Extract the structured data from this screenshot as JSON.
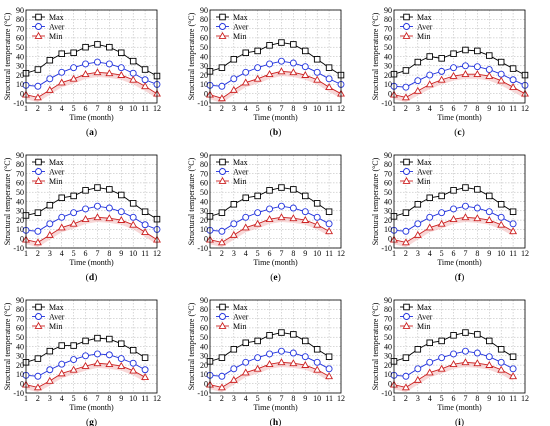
{
  "figure": {
    "xlabel": "Time (month)",
    "ylabel": "Structural temperature (°C)",
    "legend": [
      "Max",
      "Aver",
      "Min"
    ]
  },
  "series_colors": {
    "Max": "#000000",
    "Aver": "#2233dd",
    "Min": "#cc2222",
    "band": "#f2b8b8"
  },
  "chart_data": [
    {
      "panel": "a",
      "type": "line",
      "x": [
        1,
        2,
        3,
        4,
        5,
        6,
        7,
        8,
        9,
        10,
        11,
        12
      ],
      "x_ticks": [
        "1",
        "2",
        "3",
        "4",
        "5",
        "6",
        "7",
        "8",
        "9",
        "10",
        "11",
        "12"
      ],
      "y_ticks": [
        "-10",
        "0",
        "10",
        "20",
        "30",
        "40",
        "50",
        "60",
        "70",
        "80",
        "90"
      ],
      "ylim": [
        -10,
        90
      ],
      "xlim": [
        1,
        12
      ],
      "grid": true,
      "legend_position": "top-left",
      "xlabel": "Time (month)",
      "ylabel": "Structural temperature (°C)",
      "series": [
        {
          "name": "Max",
          "values": [
            22,
            26,
            36,
            43,
            44,
            50,
            53,
            50,
            44,
            35,
            26,
            19
          ]
        },
        {
          "name": "Aver",
          "values": [
            9,
            8,
            16,
            23,
            28,
            32,
            34,
            32,
            28,
            22,
            15,
            10
          ]
        },
        {
          "name": "Min",
          "values": [
            -1,
            -4,
            4,
            12,
            16,
            21,
            23,
            22,
            20,
            15,
            8,
            0
          ]
        }
      ]
    },
    {
      "panel": "b",
      "type": "line",
      "x": [
        1,
        2,
        3,
        4,
        5,
        6,
        7,
        8,
        9,
        10,
        11,
        12
      ],
      "x_ticks": [
        "1",
        "2",
        "3",
        "4",
        "5",
        "6",
        "7",
        "8",
        "9",
        "10",
        "11",
        "12"
      ],
      "y_ticks": [
        "-10",
        "0",
        "10",
        "20",
        "30",
        "40",
        "50",
        "60",
        "70",
        "80",
        "90"
      ],
      "ylim": [
        -10,
        90
      ],
      "xlim": [
        1,
        12
      ],
      "grid": true,
      "legend_position": "top-left",
      "xlabel": "Time (month)",
      "ylabel": "Structural temperature (°C)",
      "series": [
        {
          "name": "Max",
          "values": [
            24,
            28,
            37,
            44,
            46,
            52,
            55,
            53,
            46,
            37,
            28,
            20
          ]
        },
        {
          "name": "Aver",
          "values": [
            9,
            8,
            16,
            23,
            28,
            32,
            35,
            33,
            29,
            23,
            16,
            10
          ]
        },
        {
          "name": "Min",
          "values": [
            -1,
            -5,
            4,
            12,
            16,
            21,
            24,
            23,
            20,
            15,
            7,
            0
          ]
        }
      ]
    },
    {
      "panel": "c",
      "type": "line",
      "x": [
        1,
        2,
        3,
        4,
        5,
        6,
        7,
        8,
        9,
        10,
        11,
        12
      ],
      "x_ticks": [
        "1",
        "2",
        "3",
        "4",
        "5",
        "6",
        "7",
        "8",
        "9",
        "10",
        "11",
        "12"
      ],
      "y_ticks": [
        "-10",
        "0",
        "10",
        "20",
        "30",
        "40",
        "50",
        "60",
        "70",
        "80",
        "90"
      ],
      "ylim": [
        -10,
        90
      ],
      "xlim": [
        1,
        12
      ],
      "grid": true,
      "legend_position": "top-left",
      "xlabel": "Time (month)",
      "ylabel": "Structural temperature (°C)",
      "series": [
        {
          "name": "Max",
          "values": [
            21,
            25,
            34,
            40,
            38,
            43,
            47,
            46,
            41,
            34,
            27,
            20
          ]
        },
        {
          "name": "Aver",
          "values": [
            8,
            7,
            14,
            20,
            24,
            28,
            30,
            29,
            26,
            21,
            15,
            9
          ]
        },
        {
          "name": "Min",
          "values": [
            -1,
            -4,
            3,
            10,
            15,
            19,
            21,
            21,
            19,
            14,
            7,
            0
          ]
        }
      ]
    },
    {
      "panel": "d",
      "type": "line",
      "x": [
        1,
        2,
        3,
        4,
        5,
        6,
        7,
        8,
        9,
        10,
        11,
        12
      ],
      "x_ticks": [
        "1",
        "2",
        "3",
        "4",
        "5",
        "6",
        "7",
        "8",
        "9",
        "10",
        "11",
        "12"
      ],
      "y_ticks": [
        "-10",
        "0",
        "10",
        "20",
        "30",
        "40",
        "50",
        "60",
        "70",
        "80",
        "90"
      ],
      "ylim": [
        -10,
        90
      ],
      "xlim": [
        1,
        12
      ],
      "grid": true,
      "legend_position": "top-left",
      "xlabel": "Time (month)",
      "ylabel": "Structural temperature (°C)",
      "series": [
        {
          "name": "Max",
          "values": [
            25,
            28,
            36,
            44,
            46,
            52,
            55,
            53,
            47,
            38,
            29,
            21
          ]
        },
        {
          "name": "Aver",
          "values": [
            9,
            8,
            16,
            23,
            28,
            32,
            35,
            33,
            29,
            23,
            15,
            10
          ]
        },
        {
          "name": "Min",
          "values": [
            -1,
            -4,
            4,
            12,
            16,
            21,
            23,
            22,
            20,
            15,
            7,
            -1
          ]
        }
      ]
    },
    {
      "panel": "e",
      "type": "line",
      "x": [
        1,
        2,
        3,
        4,
        5,
        6,
        7,
        8,
        9,
        10,
        11,
        12
      ],
      "x_ticks": [
        "1",
        "2",
        "3",
        "4",
        "5",
        "6",
        "7",
        "8",
        "9",
        "10",
        "11",
        "12"
      ],
      "y_ticks": [
        "-10",
        "0",
        "10",
        "20",
        "30",
        "40",
        "50",
        "60",
        "70",
        "80",
        "90"
      ],
      "ylim": [
        -10,
        90
      ],
      "xlim": [
        1,
        12
      ],
      "grid": true,
      "legend_position": "top-left",
      "xlabel": "Time (month)",
      "ylabel": "Structural temperature (°C)",
      "series": [
        {
          "name": "Max",
          "values": [
            24,
            28,
            37,
            44,
            46,
            52,
            55,
            53,
            46,
            38,
            29,
            null
          ]
        },
        {
          "name": "Aver",
          "values": [
            9,
            8,
            16,
            23,
            28,
            32,
            35,
            33,
            29,
            23,
            16,
            null
          ]
        },
        {
          "name": "Min",
          "values": [
            -1,
            -4,
            4,
            12,
            16,
            21,
            23,
            22,
            20,
            15,
            8,
            null
          ]
        }
      ]
    },
    {
      "panel": "f",
      "type": "line",
      "x": [
        1,
        2,
        3,
        4,
        5,
        6,
        7,
        8,
        9,
        10,
        11,
        12
      ],
      "x_ticks": [
        "1",
        "2",
        "3",
        "4",
        "5",
        "6",
        "7",
        "8",
        "9",
        "10",
        "11",
        "12"
      ],
      "y_ticks": [
        "-10",
        "0",
        "10",
        "20",
        "30",
        "40",
        "50",
        "60",
        "70",
        "80",
        "90"
      ],
      "ylim": [
        -10,
        90
      ],
      "xlim": [
        1,
        12
      ],
      "grid": true,
      "legend_position": "top-left",
      "xlabel": "Time (month)",
      "ylabel": "Structural temperature (°C)",
      "series": [
        {
          "name": "Max",
          "values": [
            24,
            28,
            37,
            44,
            46,
            52,
            55,
            53,
            46,
            37,
            29,
            null
          ]
        },
        {
          "name": "Aver",
          "values": [
            9,
            8,
            16,
            23,
            28,
            32,
            35,
            33,
            29,
            23,
            16,
            null
          ]
        },
        {
          "name": "Min",
          "values": [
            -1,
            -4,
            4,
            12,
            16,
            21,
            23,
            22,
            20,
            15,
            8,
            null
          ]
        }
      ]
    },
    {
      "panel": "g",
      "type": "line",
      "x": [
        1,
        2,
        3,
        4,
        5,
        6,
        7,
        8,
        9,
        10,
        11,
        12
      ],
      "x_ticks": [
        "1",
        "2",
        "3",
        "4",
        "5",
        "6",
        "7",
        "8",
        "9",
        "10",
        "11",
        "12"
      ],
      "y_ticks": [
        "-10",
        "0",
        "10",
        "20",
        "30",
        "40",
        "50",
        "60",
        "70",
        "80",
        "90"
      ],
      "ylim": [
        -10,
        90
      ],
      "xlim": [
        1,
        12
      ],
      "grid": true,
      "legend_position": "top-left",
      "xlabel": "Time (month)",
      "ylabel": "Structural temperature (°C)",
      "series": [
        {
          "name": "Max",
          "values": [
            23,
            27,
            35,
            41,
            41,
            46,
            49,
            48,
            43,
            36,
            28,
            null
          ]
        },
        {
          "name": "Aver",
          "values": [
            9,
            8,
            15,
            21,
            26,
            30,
            32,
            31,
            27,
            22,
            15,
            null
          ]
        },
        {
          "name": "Min",
          "values": [
            -1,
            -4,
            3,
            11,
            15,
            19,
            22,
            21,
            19,
            14,
            7,
            null
          ]
        }
      ]
    },
    {
      "panel": "h",
      "type": "line",
      "x": [
        1,
        2,
        3,
        4,
        5,
        6,
        7,
        8,
        9,
        10,
        11,
        12
      ],
      "x_ticks": [
        "1",
        "2",
        "3",
        "4",
        "5",
        "6",
        "7",
        "8",
        "9",
        "10",
        "11",
        "12"
      ],
      "y_ticks": [
        "-10",
        "0",
        "10",
        "20",
        "30",
        "40",
        "50",
        "60",
        "70",
        "80",
        "90"
      ],
      "ylim": [
        -10,
        90
      ],
      "xlim": [
        1,
        12
      ],
      "grid": true,
      "legend_position": "top-left",
      "xlabel": "Time (month)",
      "ylabel": "Structural temperature (°C)",
      "series": [
        {
          "name": "Max",
          "values": [
            24,
            28,
            37,
            44,
            46,
            52,
            55,
            53,
            46,
            37,
            29,
            null
          ]
        },
        {
          "name": "Aver",
          "values": [
            9,
            8,
            16,
            23,
            28,
            32,
            35,
            33,
            29,
            23,
            16,
            null
          ]
        },
        {
          "name": "Min",
          "values": [
            -1,
            -4,
            4,
            12,
            16,
            21,
            23,
            22,
            20,
            15,
            8,
            null
          ]
        }
      ]
    },
    {
      "panel": "i",
      "type": "line",
      "x": [
        1,
        2,
        3,
        4,
        5,
        6,
        7,
        8,
        9,
        10,
        11,
        12
      ],
      "x_ticks": [
        "1",
        "2",
        "3",
        "4",
        "5",
        "6",
        "7",
        "8",
        "9",
        "10",
        "11",
        "12"
      ],
      "y_ticks": [
        "-10",
        "0",
        "10",
        "20",
        "30",
        "40",
        "50",
        "60",
        "70",
        "80",
        "90"
      ],
      "ylim": [
        -10,
        90
      ],
      "xlim": [
        1,
        12
      ],
      "grid": true,
      "legend_position": "top-left",
      "xlabel": "Time (month)",
      "ylabel": "Structural temperature (°C)",
      "series": [
        {
          "name": "Max",
          "values": [
            24,
            28,
            37,
            44,
            46,
            52,
            55,
            53,
            46,
            37,
            29,
            null
          ]
        },
        {
          "name": "Aver",
          "values": [
            9,
            8,
            16,
            23,
            28,
            32,
            35,
            33,
            29,
            23,
            16,
            null
          ]
        },
        {
          "name": "Min",
          "values": [
            -1,
            -4,
            4,
            12,
            16,
            21,
            23,
            22,
            20,
            15,
            8,
            null
          ]
        }
      ]
    }
  ]
}
